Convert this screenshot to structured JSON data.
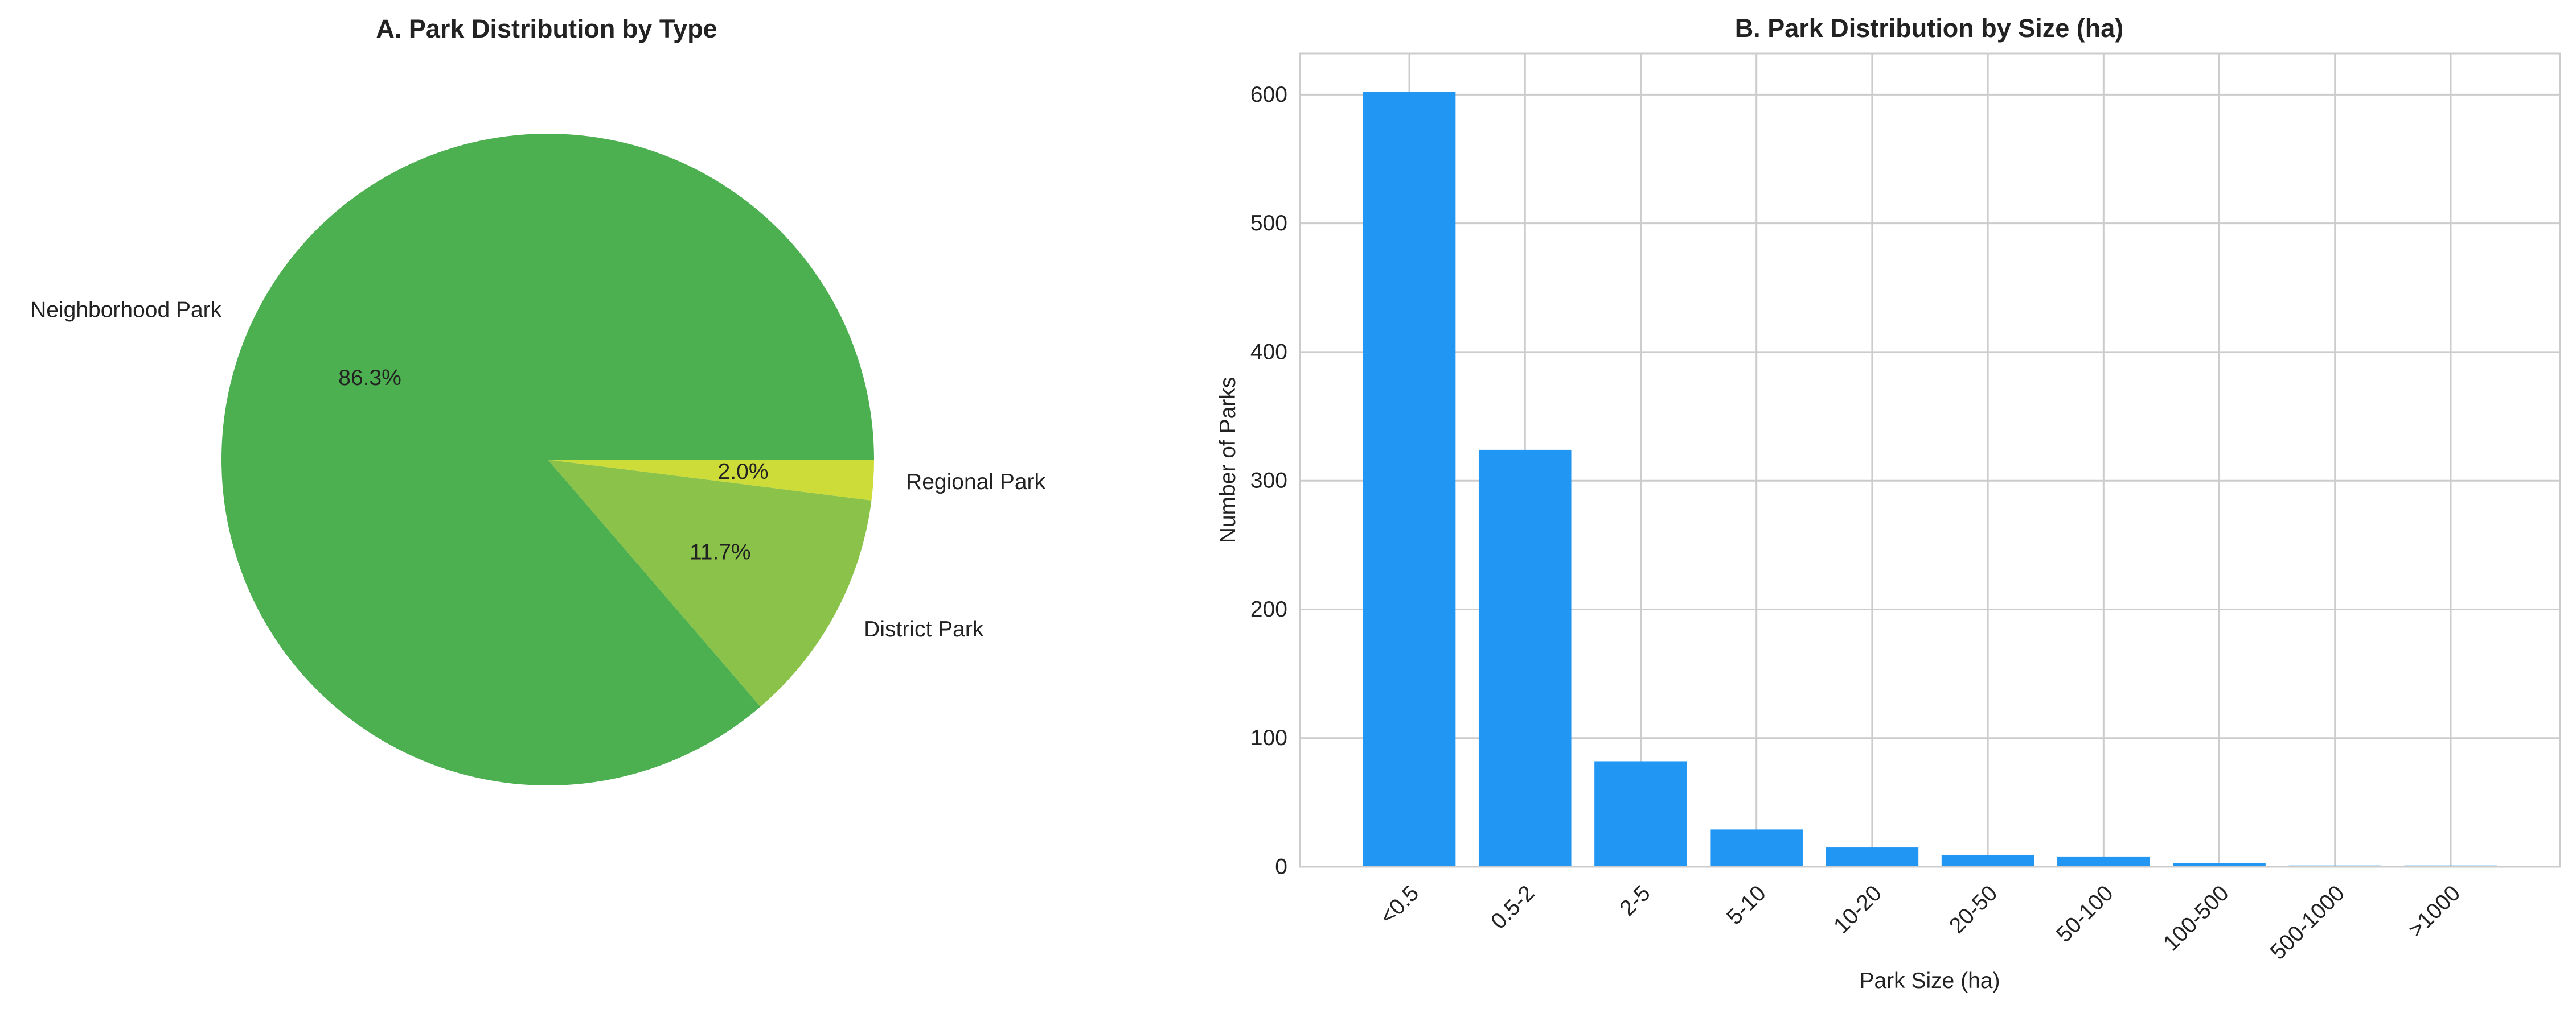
{
  "chart_data": [
    {
      "type": "pie",
      "title": "A. Park Distribution by Type",
      "slices": [
        {
          "label": "Neighborhood Park",
          "value": 86.3,
          "pct_label": "86.3%",
          "color": "#4caf50"
        },
        {
          "label": "District Park",
          "value": 11.7,
          "pct_label": "11.7%",
          "color": "#8bc34a"
        },
        {
          "label": "Regional Park",
          "value": 2.0,
          "pct_label": "2.0%",
          "color": "#cddc39"
        }
      ],
      "start_angle_deg": 0,
      "direction": "counterclockwise",
      "legend": "none"
    },
    {
      "type": "bar",
      "title": "B. Park Distribution by Size (ha)",
      "xlabel": "Park Size (ha)",
      "ylabel": "Number of Parks",
      "categories": [
        "<0.5",
        "0.5-2",
        "2-5",
        "5-10",
        "10-20",
        "20-50",
        "50-100",
        "100-500",
        "500-1000",
        ">1000"
      ],
      "values": [
        602,
        324,
        82,
        29,
        15,
        9,
        8,
        3,
        1,
        1
      ],
      "ylim": [
        0,
        632
      ],
      "yticks": [
        "0",
        "100",
        "200",
        "300",
        "400",
        "500",
        "600"
      ],
      "bar_color": "#2196f3",
      "grid": true,
      "xtick_rotation_deg": 45,
      "legend": "none"
    }
  ]
}
